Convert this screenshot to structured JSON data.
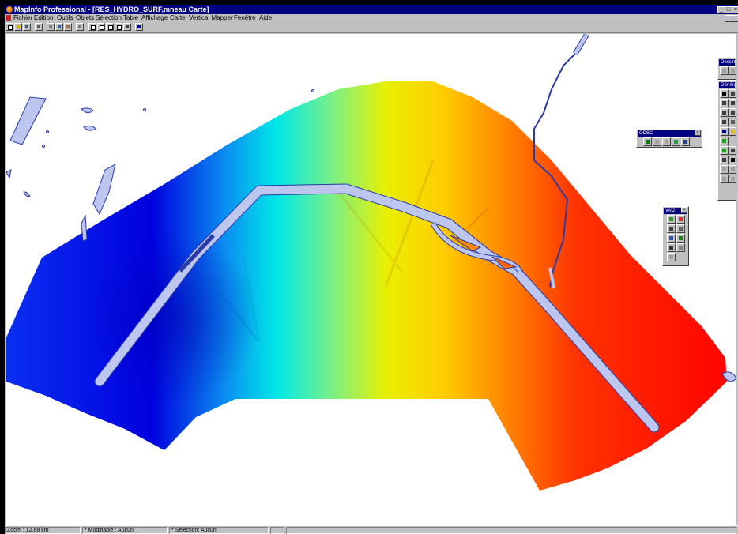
{
  "window": {
    "title": "MapInfo Professional - [RES_HYDRO_SURF,mneau Carte]",
    "controls": [
      "_",
      "□",
      "×"
    ]
  },
  "menu": {
    "items": [
      "Fichier",
      "Edition",
      "Outils",
      "Objets",
      "Sélection",
      "Table",
      "Affichage",
      "Carte",
      "Vertical Mapper",
      "Fenêtre",
      "Aide"
    ]
  },
  "toolbar": {
    "buttons": [
      "new-icon",
      "open-icon",
      "save-icon",
      "print-icon",
      "cut-icon",
      "copy-icon",
      "paste-icon",
      "undo-icon",
      "new-browser-icon",
      "new-map-icon",
      "new-graph-icon",
      "new-layout-icon",
      "redistrict-icon",
      "help-icon"
    ]
  },
  "palettes": {
    "dessins": {
      "title": "Dessins"
    },
    "general": {
      "title": "Général"
    },
    "odbc": {
      "title": "ODBC"
    },
    "vm2": {
      "title": "VM2"
    }
  },
  "status": {
    "zoom": "Zoom : 12.88 km",
    "modifiable": "* Modifiable : Aucun",
    "selection": "* Sélection: Aucun"
  },
  "colors": {
    "title_bar": "#000080",
    "river": "#bcc6ee",
    "river_outline": "#3a4ac8",
    "surface_low": "#0000dd",
    "surface_high": "#ff0000"
  }
}
